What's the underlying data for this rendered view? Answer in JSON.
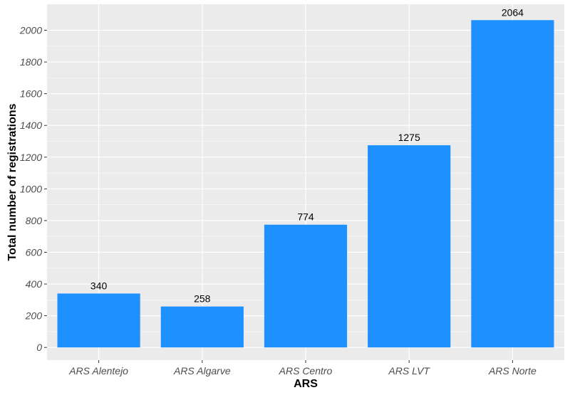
{
  "chart_data": {
    "type": "bar",
    "categories": [
      "ARS Alentejo",
      "ARS Algarve",
      "ARS Centro",
      "ARS LVT",
      "ARS Norte"
    ],
    "values": [
      340,
      258,
      774,
      1275,
      2064
    ],
    "data_labels": [
      "340",
      "258",
      "774",
      "1275",
      "2064"
    ],
    "xlabel": "ARS",
    "ylabel": "Total number of registrations",
    "ylim": [
      -80,
      2164
    ],
    "yticks": [
      0,
      200,
      400,
      600,
      800,
      1000,
      1200,
      1400,
      1600,
      1800,
      2000
    ],
    "grid": true,
    "legend": "none",
    "colors": {
      "bar": "#1E90FF",
      "panel": "#EBEBEB",
      "grid": "#FFFFFF"
    }
  }
}
